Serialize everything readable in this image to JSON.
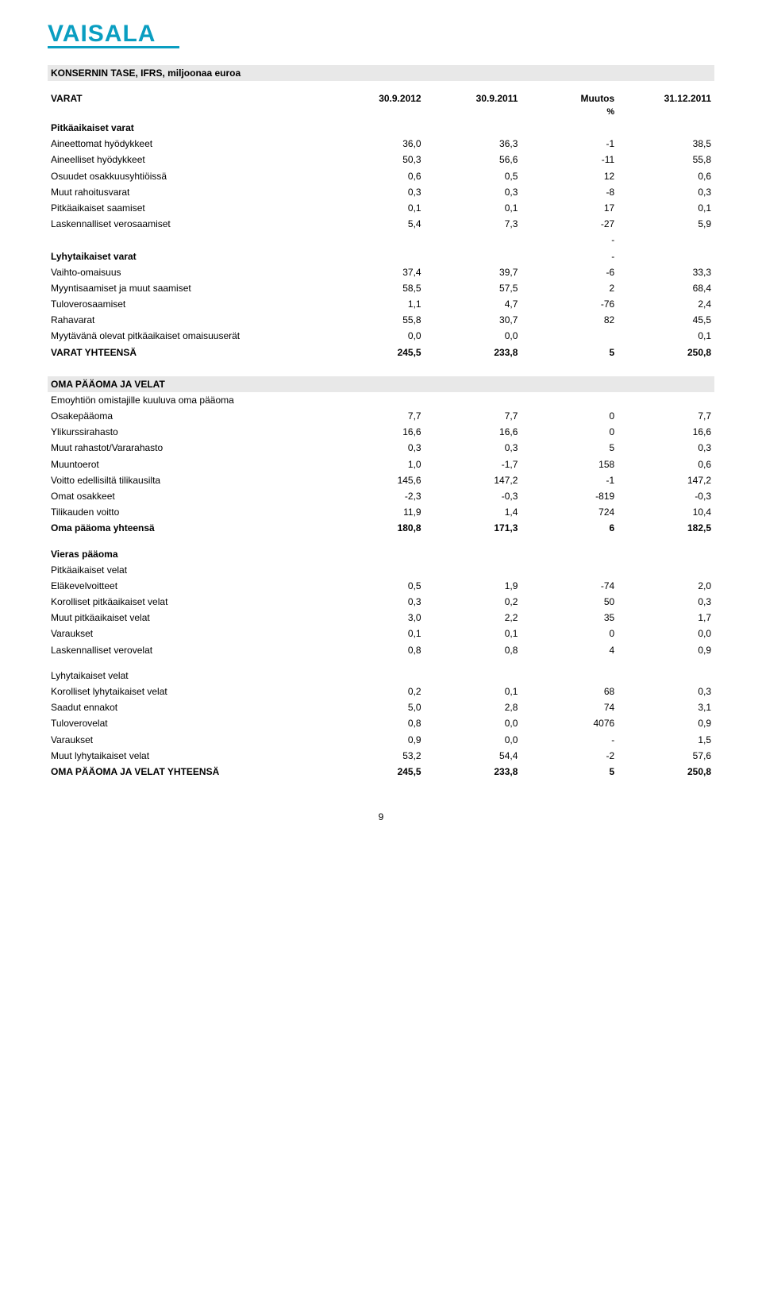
{
  "logo": {
    "text": "VAISALA",
    "color": "#0a9ec1",
    "fontsize": 28,
    "fontweight": 900
  },
  "pageNumber": "9",
  "columns": [
    "30.9.2012",
    "30.9.2011",
    "Muutos",
    "31.12.2011"
  ],
  "subColumns": [
    "",
    "",
    "%",
    ""
  ],
  "section1": {
    "title": "KONSERNIN TASE, IFRS, miljoonaa euroa",
    "varatLabel": "VARAT",
    "groups": [
      {
        "heading": "Pitkäaikaiset varat",
        "rows": [
          {
            "label": "Aineettomat hyödykkeet",
            "c1": "36,0",
            "c2": "36,3",
            "c3": "-1",
            "c4": "38,5"
          },
          {
            "label": "Aineelliset hyödykkeet",
            "c1": "50,3",
            "c2": "56,6",
            "c3": "-11",
            "c4": "55,8"
          },
          {
            "label": "Osuudet osakkuusyhtiöissä",
            "c1": "0,6",
            "c2": "0,5",
            "c3": "12",
            "c4": "0,6"
          },
          {
            "label": "Muut rahoitusvarat",
            "c1": "0,3",
            "c2": "0,3",
            "c3": "-8",
            "c4": "0,3"
          },
          {
            "label": "Pitkäaikaiset saamiset",
            "c1": "0,1",
            "c2": "0,1",
            "c3": "17",
            "c4": "0,1"
          },
          {
            "label": "Laskennalliset verosaamiset",
            "c1": "5,4",
            "c2": "7,3",
            "c3": "-27",
            "c4": "5,9"
          }
        ],
        "trailDash": true
      },
      {
        "heading": "Lyhytaikaiset varat",
        "headingTrailDash": true,
        "rows": [
          {
            "label": "Vaihto-omaisuus",
            "c1": "37,4",
            "c2": "39,7",
            "c3": "-6",
            "c4": "33,3"
          },
          {
            "label": "Myyntisaamiset ja muut saamiset",
            "c1": "58,5",
            "c2": "57,5",
            "c3": "2",
            "c4": "68,4"
          },
          {
            "label": "Tuloverosaamiset",
            "c1": "1,1",
            "c2": "4,7",
            "c3": "-76",
            "c4": "2,4"
          },
          {
            "label": "Rahavarat",
            "c1": "55,8",
            "c2": "30,7",
            "c3": "82",
            "c4": "45,5"
          },
          {
            "label": "Myytävänä olevat pitkäaikaiset omaisuuserät",
            "c1": "0,0",
            "c2": "0,0",
            "c3": "",
            "c4": "0,1"
          }
        ]
      }
    ],
    "total": {
      "label": "VARAT YHTEENSÄ",
      "c1": "245,5",
      "c2": "233,8",
      "c3": "5",
      "c4": "250,8"
    }
  },
  "section2": {
    "title": "OMA PÄÄOMA JA VELAT",
    "subheading": "Emoyhtiön omistajille kuuluva oma pääoma",
    "rows": [
      {
        "label": "Osakepääoma",
        "c1": "7,7",
        "c2": "7,7",
        "c3": "0",
        "c4": "7,7"
      },
      {
        "label": "Ylikurssirahasto",
        "c1": "16,6",
        "c2": "16,6",
        "c3": "0",
        "c4": "16,6"
      },
      {
        "label": "Muut rahastot/Vararahasto",
        "c1": "0,3",
        "c2": "0,3",
        "c3": "5",
        "c4": "0,3"
      },
      {
        "label": "Muuntoerot",
        "c1": "1,0",
        "c2": "-1,7",
        "c3": "158",
        "c4": "0,6"
      },
      {
        "label": "Voitto edellisiltä tilikausilta",
        "c1": "145,6",
        "c2": "147,2",
        "c3": "-1",
        "c4": "147,2"
      },
      {
        "label": "Omat osakkeet",
        "c1": "-2,3",
        "c2": "-0,3",
        "c3": "-819",
        "c4": "-0,3"
      },
      {
        "label": "Tilikauden voitto",
        "c1": "11,9",
        "c2": "1,4",
        "c3": "724",
        "c4": "10,4"
      }
    ],
    "subtotal": {
      "label": "Oma pääoma yhteensä",
      "c1": "180,8",
      "c2": "171,3",
      "c3": "6",
      "c4": "182,5"
    }
  },
  "section3": {
    "heading": "Vieras pääoma",
    "sub1": {
      "heading": "Pitkäaikaiset velat",
      "rows": [
        {
          "label": "Eläkevelvoitteet",
          "c1": "0,5",
          "c2": "1,9",
          "c3": "-74",
          "c4": "2,0"
        },
        {
          "label": "Korolliset pitkäaikaiset velat",
          "c1": "0,3",
          "c2": "0,2",
          "c3": "50",
          "c4": "0,3"
        },
        {
          "label": "Muut pitkäaikaiset velat",
          "c1": "3,0",
          "c2": "2,2",
          "c3": "35",
          "c4": "1,7"
        },
        {
          "label": "Varaukset",
          "c1": "0,1",
          "c2": "0,1",
          "c3": "0",
          "c4": "0,0"
        },
        {
          "label": "Laskennalliset verovelat",
          "c1": "0,8",
          "c2": "0,8",
          "c3": "4",
          "c4": "0,9"
        }
      ]
    },
    "sub2": {
      "heading": "Lyhytaikaiset velat",
      "rows": [
        {
          "label": "Korolliset lyhytaikaiset velat",
          "c1": "0,2",
          "c2": "0,1",
          "c3": "68",
          "c4": "0,3"
        },
        {
          "label": "Saadut ennakot",
          "c1": "5,0",
          "c2": "2,8",
          "c3": "74",
          "c4": "3,1"
        },
        {
          "label": "Tuloverovelat",
          "c1": "0,8",
          "c2": "0,0",
          "c3": "4076",
          "c4": "0,9"
        },
        {
          "label": "Varaukset",
          "c1": "0,9",
          "c2": "0,0",
          "c3": "-",
          "c4": "1,5"
        },
        {
          "label": "Muut lyhytaikaiset velat",
          "c1": "53,2",
          "c2": "54,4",
          "c3": "-2",
          "c4": "57,6"
        }
      ]
    },
    "total": {
      "label": "OMA PÄÄOMA JA VELAT YHTEENSÄ",
      "c1": "245,5",
      "c2": "233,8",
      "c3": "5",
      "c4": "250,8"
    }
  }
}
